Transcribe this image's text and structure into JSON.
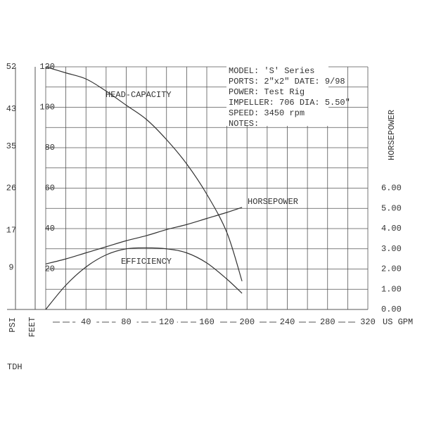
{
  "chart_data": {
    "type": "line",
    "x_label": "US GPM",
    "y_label": "FEET",
    "y2_label": "HORSEPOWER",
    "y3_label": "PSI",
    "footer": "TDH",
    "info": [
      "MODEL: 'S' Series",
      "PORTS: 2\"x2\" DATE: 9/98",
      "POWER: Test Rig",
      "IMPELLER: 706 DIA: 5.50\"",
      "SPEED: 3450 rpm",
      "NOTES:"
    ],
    "x": [
      0,
      20,
      40,
      60,
      80,
      100,
      120,
      140,
      160,
      180,
      195
    ],
    "xlim": [
      0,
      320
    ],
    "xticks": [
      40,
      80,
      120,
      160,
      200,
      240,
      280,
      320
    ],
    "xgrid": [
      0,
      20,
      40,
      60,
      80,
      100,
      120,
      140,
      160,
      180,
      200,
      220,
      240,
      260,
      280,
      300,
      320
    ],
    "ylim": [
      0,
      120
    ],
    "yticks": [
      20,
      40,
      60,
      80,
      100,
      120
    ],
    "ygrid": [
      0,
      10,
      20,
      30,
      40,
      50,
      60,
      70,
      80,
      90,
      100,
      110,
      120
    ],
    "y2lim": [
      0,
      12
    ],
    "y2ticks": [
      {
        "value": 0,
        "label": "0.00"
      },
      {
        "value": 1,
        "label": "1.00"
      },
      {
        "value": 2,
        "label": "2.00"
      },
      {
        "value": 3,
        "label": "3.00"
      },
      {
        "value": 4,
        "label": "4.00"
      },
      {
        "value": 5,
        "label": "5.00"
      },
      {
        "value": 6,
        "label": "6.00"
      }
    ],
    "y3lim": [
      0,
      52
    ],
    "y3ticks": [
      52,
      43,
      35,
      26,
      17,
      9
    ],
    "grid": true,
    "series": [
      {
        "name": "HEAD-CAPACITY",
        "color": "#333333",
        "values": [
          120,
          117,
          114,
          108,
          101,
          94,
          84,
          72,
          57,
          38,
          14
        ]
      },
      {
        "name": "HORSEPOWER",
        "color": "#333333",
        "axis": "y2",
        "values": [
          2.25,
          2.5,
          2.8,
          3.1,
          3.4,
          3.65,
          3.95,
          4.2,
          4.5,
          4.8,
          5.05
        ]
      },
      {
        "name": "EFFICIENCY",
        "color": "#333333",
        "values": [
          0,
          12,
          21,
          27,
          30,
          30.5,
          30,
          28,
          23,
          15,
          8
        ]
      }
    ]
  }
}
